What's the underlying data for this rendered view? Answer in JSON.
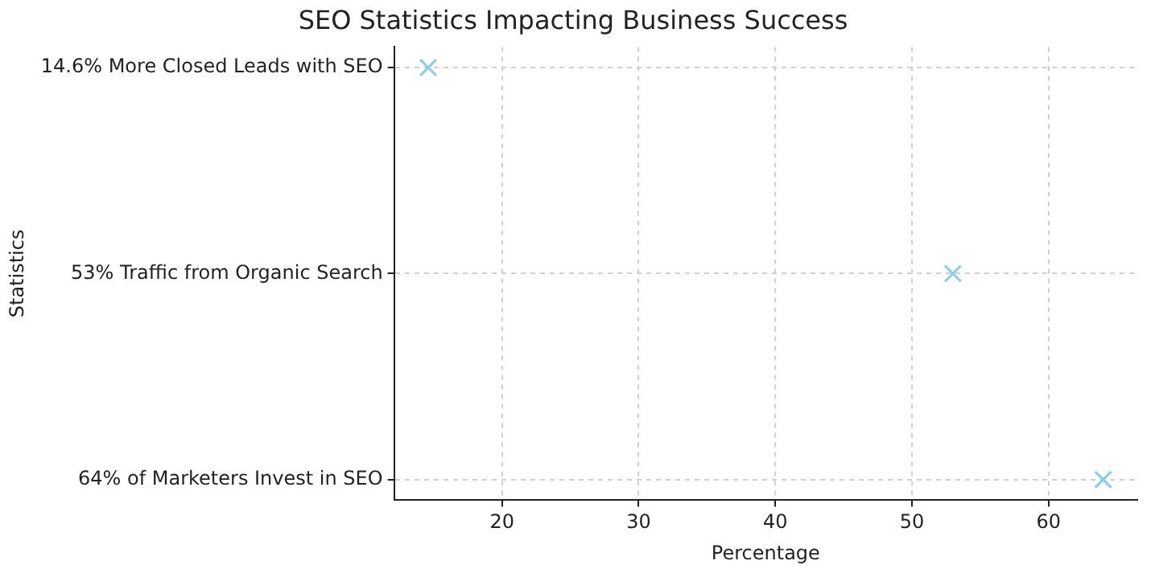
{
  "chart_data": {
    "type": "scatter",
    "title": "SEO Statistics Impacting Business Success",
    "xlabel": "Percentage",
    "ylabel": "Statistics",
    "categories": [
      "14.6% More Closed Leads with SEO",
      "53% Traffic from Organic Search",
      "64% of Marketers Invest in SEO"
    ],
    "series": [
      {
        "color": "#87ceeb",
        "values": [
          14.6,
          53,
          64
        ]
      }
    ],
    "orientation": "horizontal",
    "xlim": [
      12.1,
      66.5
    ],
    "xticks": [
      20,
      30,
      40,
      50,
      60
    ],
    "grid": true,
    "marker": "cross",
    "legend": false
  }
}
